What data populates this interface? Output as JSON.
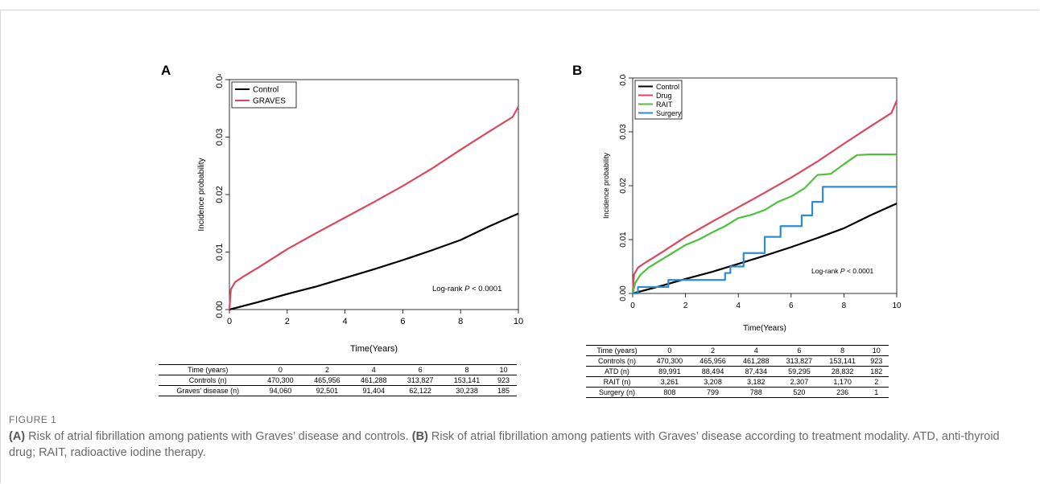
{
  "figure_label": "FIGURE 1",
  "caption": {
    "part_a_tag": "(A)",
    "part_a_text": " Risk of atrial fibrillation among patients with Graves’ disease and controls. ",
    "part_b_tag": "(B)",
    "part_b_text": " Risk of atrial fibrillation among patients with Graves’ disease according to treatment modality. ATD, anti-thyroid drug; RAIT, radioactive iodine therapy."
  },
  "chart_data": [
    {
      "panel": "A",
      "type": "line",
      "title": "",
      "xlabel": "Time(Years)",
      "ylabel": "Incidence probability",
      "xlim": [
        0,
        10
      ],
      "ylim": [
        0,
        0.04
      ],
      "xticks": [
        "0",
        "2",
        "4",
        "6",
        "8",
        "10"
      ],
      "yticks": [
        "0.00",
        "0.01",
        "0.02",
        "0.03",
        "0.04"
      ],
      "legend_position": "top-left",
      "annotation": {
        "prefix": "Log-rank ",
        "p": "P",
        "suffix": " < 0.0001"
      },
      "series": [
        {
          "name": "Control",
          "color": "#000000",
          "x": [
            0,
            1,
            2,
            3,
            4,
            5,
            6,
            7,
            8,
            9,
            10
          ],
          "y": [
            0,
            0.0013,
            0.0027,
            0.004,
            0.0055,
            0.007,
            0.0086,
            0.0103,
            0.0121,
            0.0145,
            0.0167
          ]
        },
        {
          "name": "GRAVES",
          "color": "#d9485f",
          "x": [
            0,
            0.05,
            0.2,
            0.5,
            1,
            2,
            3,
            4,
            5,
            6,
            7,
            8,
            9,
            9.8,
            10
          ],
          "y": [
            0,
            0.0035,
            0.0048,
            0.0058,
            0.0073,
            0.0105,
            0.0133,
            0.016,
            0.0187,
            0.0215,
            0.0245,
            0.0278,
            0.031,
            0.0335,
            0.0353
          ]
        }
      ],
      "risk_table": {
        "header": [
          "Time (years)",
          "0",
          "2",
          "4",
          "6",
          "8",
          "10"
        ],
        "rows": [
          [
            "Controls (n)",
            "470,300",
            "465,956",
            "461,288",
            "313,827",
            "153,141",
            "923"
          ],
          [
            "Graves' disease (n)",
            "94,060",
            "92,501",
            "91,404",
            "62,122",
            "30,238",
            "185"
          ]
        ]
      }
    },
    {
      "panel": "B",
      "type": "line",
      "title": "",
      "xlabel": "Time(Years)",
      "ylabel": "Incidence probability",
      "xlim": [
        0,
        10
      ],
      "ylim": [
        0,
        0.04
      ],
      "xticks": [
        "0",
        "2",
        "4",
        "6",
        "8",
        "10"
      ],
      "yticks": [
        "0.00",
        "0.01",
        "0.02",
        "0.03",
        "0.04"
      ],
      "legend_position": "top-left",
      "annotation": {
        "prefix": "Log-rank ",
        "p": "P",
        "suffix": " < 0.0001"
      },
      "series": [
        {
          "name": "Control",
          "color": "#000000",
          "x": [
            0,
            1,
            2,
            3,
            4,
            5,
            6,
            7,
            8,
            9,
            10
          ],
          "y": [
            0,
            0.0013,
            0.0027,
            0.004,
            0.0055,
            0.007,
            0.0086,
            0.0103,
            0.0121,
            0.0145,
            0.0167
          ]
        },
        {
          "name": "Drug",
          "color": "#d9485f",
          "x": [
            0,
            0.05,
            0.2,
            0.5,
            1,
            2,
            3,
            4,
            5,
            6,
            7,
            8,
            9,
            9.8,
            10
          ],
          "y": [
            0,
            0.0035,
            0.0048,
            0.0058,
            0.0073,
            0.0105,
            0.0133,
            0.016,
            0.0187,
            0.0215,
            0.0245,
            0.0278,
            0.031,
            0.0335,
            0.0358
          ]
        },
        {
          "name": "RAIT",
          "color": "#4ec13a",
          "x": [
            0,
            0.1,
            0.3,
            0.6,
            1,
            1.5,
            2,
            2.5,
            3,
            3.5,
            4,
            4.5,
            5,
            5.5,
            6,
            6.5,
            7,
            7.5,
            8,
            8.5,
            9,
            10
          ],
          "y": [
            0,
            0.002,
            0.0035,
            0.0048,
            0.006,
            0.0075,
            0.009,
            0.01,
            0.0113,
            0.0125,
            0.014,
            0.0146,
            0.0155,
            0.017,
            0.018,
            0.0195,
            0.022,
            0.0222,
            0.024,
            0.0257,
            0.0258,
            0.0258
          ]
        },
        {
          "name": "Surgery",
          "color": "#2f8ad4",
          "x": [
            0,
            0.2,
            1.3,
            1.35,
            3.4,
            3.5,
            3.7,
            4.2,
            5.0,
            5.6,
            6.4,
            6.8,
            7.2,
            10
          ],
          "y": [
            0,
            0.0012,
            0.0012,
            0.0025,
            0.0025,
            0.0038,
            0.005,
            0.0075,
            0.0105,
            0.0125,
            0.0145,
            0.017,
            0.0198,
            0.0198
          ]
        }
      ],
      "risk_table": {
        "header": [
          "Time (years)",
          "0",
          "2",
          "4",
          "6",
          "8",
          "10"
        ],
        "rows": [
          [
            "Controls (n)",
            "470,300",
            "465,956",
            "461,288",
            "313,827",
            "153,141",
            "923"
          ],
          [
            "ATD (n)",
            "89,991",
            "88,494",
            "87,434",
            "59,295",
            "28,832",
            "182"
          ],
          [
            "RAIT (n)",
            "3,261",
            "3,208",
            "3,182",
            "2,307",
            "1,170",
            "2"
          ],
          [
            "Surgery (n)",
            "808",
            "799",
            "788",
            "520",
            "236",
            "1"
          ]
        ]
      }
    }
  ]
}
